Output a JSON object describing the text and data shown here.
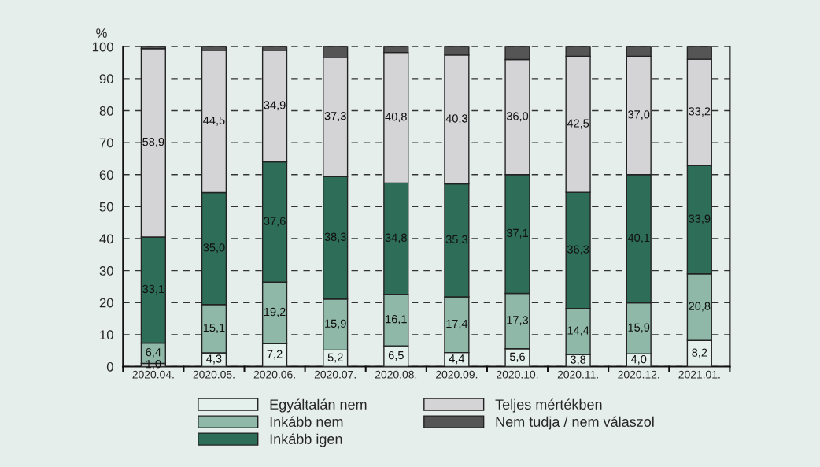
{
  "chart_data": {
    "type": "bar",
    "stacked": true,
    "ylabel": "%",
    "categories": [
      "2020.04.",
      "2020.05.",
      "2020.06.",
      "2020.07.",
      "2020.08.",
      "2020.09.",
      "2020.10.",
      "2020.11.",
      "2020.12.",
      "2021.01."
    ],
    "series": [
      {
        "name": "Egyáltalán nem",
        "color": "#e4f0ec",
        "values": [
          1.0,
          4.3,
          7.2,
          5.2,
          6.5,
          4.4,
          5.6,
          3.8,
          4.0,
          8.2
        ],
        "value_labels": [
          "1,0",
          "4,3",
          "7,2",
          "5,2",
          "6,5",
          "4,4",
          "5,6",
          "3,8",
          "4,0",
          "8,2"
        ]
      },
      {
        "name": "Inkább nem",
        "color": "#8fb8a8",
        "values": [
          6.4,
          15.1,
          19.2,
          15.9,
          16.1,
          17.4,
          17.3,
          14.4,
          15.9,
          20.8
        ],
        "value_labels": [
          "6,4",
          "15,1",
          "19,2",
          "15,9",
          "16,1",
          "17,4",
          "17,3",
          "14,4",
          "15,9",
          "20,8"
        ]
      },
      {
        "name": "Inkább igen",
        "color": "#2e6e58",
        "values": [
          33.1,
          35.0,
          37.6,
          38.3,
          34.8,
          35.3,
          37.1,
          36.3,
          40.1,
          33.9
        ],
        "value_labels": [
          "33,1",
          "35,0",
          "37,6",
          "38,3",
          "34,8",
          "35,3",
          "37,1",
          "36,3",
          "40,1",
          "33,9"
        ]
      },
      {
        "name": "Teljes mértékben",
        "color": "#d4d4d6",
        "values": [
          58.9,
          44.5,
          34.9,
          37.3,
          40.8,
          40.3,
          36.0,
          42.5,
          37.0,
          33.2
        ],
        "value_labels": [
          "58,9",
          "44,5",
          "34,9",
          "37,3",
          "40,8",
          "40,3",
          "36,0",
          "42,5",
          "37,0",
          "33,2"
        ]
      },
      {
        "name": "Nem tudja / nem válaszol",
        "color": "#555555",
        "values": [
          0.6,
          1.1,
          1.1,
          3.3,
          1.8,
          2.6,
          4.0,
          3.0,
          3.0,
          3.9
        ]
      }
    ],
    "ylim": [
      0,
      100
    ],
    "yticks": [
      0,
      10,
      20,
      30,
      40,
      50,
      60,
      70,
      80,
      90,
      100
    ],
    "grid": "y",
    "legend": "bottom"
  }
}
